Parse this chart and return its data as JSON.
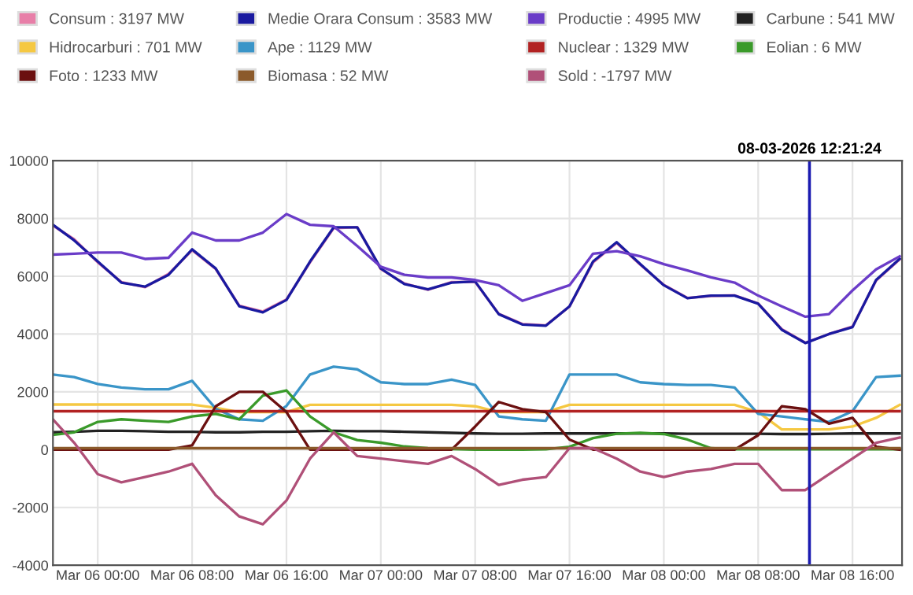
{
  "chart_data": {
    "type": "line",
    "legend": "top",
    "grid": true,
    "marker": "none",
    "line_style": "solid",
    "x": [
      "2026-03-05T20:12",
      "2026-03-05T22:00",
      "2026-03-06T00:00",
      "2026-03-06T02:00",
      "2026-03-06T04:00",
      "2026-03-06T06:00",
      "2026-03-06T08:00",
      "2026-03-06T10:00",
      "2026-03-06T12:00",
      "2026-03-06T14:00",
      "2026-03-06T16:00",
      "2026-03-06T18:00",
      "2026-03-06T20:00",
      "2026-03-06T22:00",
      "2026-03-07T00:00",
      "2026-03-07T02:00",
      "2026-03-07T04:00",
      "2026-03-07T06:00",
      "2026-03-07T08:00",
      "2026-03-07T10:00",
      "2026-03-07T12:00",
      "2026-03-07T14:00",
      "2026-03-07T16:00",
      "2026-03-07T18:00",
      "2026-03-07T20:00",
      "2026-03-07T22:00",
      "2026-03-08T00:00",
      "2026-03-08T02:00",
      "2026-03-08T04:00",
      "2026-03-08T06:00",
      "2026-03-08T08:00",
      "2026-03-08T10:00",
      "2026-03-08T12:00",
      "2026-03-08T14:00",
      "2026-03-08T16:00",
      "2026-03-08T18:00",
      "2026-03-08T20:00"
    ],
    "xlim": [
      "2026-03-05T20:12",
      "2026-03-08T20:12"
    ],
    "xticks": [
      {
        "value": "2026-03-06T00:00",
        "label": "Mar 06 00:00"
      },
      {
        "value": "2026-03-06T08:00",
        "label": "Mar 06 08:00"
      },
      {
        "value": "2026-03-06T16:00",
        "label": "Mar 06 16:00"
      },
      {
        "value": "2026-03-07T00:00",
        "label": "Mar 07 00:00"
      },
      {
        "value": "2026-03-07T08:00",
        "label": "Mar 07 08:00"
      },
      {
        "value": "2026-03-07T16:00",
        "label": "Mar 07 16:00"
      },
      {
        "value": "2026-03-08T00:00",
        "label": "Mar 08 00:00"
      },
      {
        "value": "2026-03-08T08:00",
        "label": "Mar 08 08:00"
      },
      {
        "value": "2026-03-08T16:00",
        "label": "Mar 08 16:00"
      }
    ],
    "ylim": [
      -4000,
      10000
    ],
    "yticks": [
      -4000,
      -2000,
      0,
      2000,
      4000,
      6000,
      8000,
      10000
    ],
    "ref_lines": [
      {
        "axis": "x",
        "value": "2026-03-08T12:21",
        "label": "08-03-2026 12:21:24",
        "color": "#1a1ab0"
      }
    ],
    "series": [
      {
        "name": "Consum : 3197 MW",
        "color": "#e87fa8",
        "values": [
          7750,
          7280,
          6480,
          5800,
          5620,
          6080,
          6900,
          6250,
          4980,
          4780,
          5200,
          6480,
          7660,
          7700,
          6250,
          5750,
          5530,
          5800,
          5800,
          4700,
          4350,
          4300,
          4950,
          6480,
          7150,
          6400,
          5700,
          5250,
          5320,
          5340,
          5060,
          4170,
          3700,
          4000,
          4260,
          5850,
          6580
        ]
      },
      {
        "name": "Medie Orara Consum : 3583 MW",
        "color": "#1a1aa0",
        "values": [
          7780,
          7240,
          6510,
          5780,
          5640,
          6050,
          6930,
          6270,
          4960,
          4750,
          5180,
          6510,
          7690,
          7690,
          6270,
          5730,
          5550,
          5780,
          5820,
          4690,
          4330,
          4290,
          4960,
          6510,
          7180,
          6420,
          5690,
          5240,
          5330,
          5330,
          5050,
          4150,
          3690,
          4000,
          4240,
          5870,
          6600
        ]
      },
      {
        "name": "Productie : 4995 MW",
        "color": "#6a3cc8",
        "values": [
          6750,
          6780,
          6820,
          6820,
          6600,
          6640,
          7510,
          7240,
          7240,
          7510,
          8150,
          7780,
          7730,
          7050,
          6330,
          6050,
          5960,
          5960,
          5870,
          5690,
          5150,
          5420,
          5690,
          6780,
          6870,
          6690,
          6420,
          6200,
          5960,
          5780,
          5330,
          4960,
          4600,
          4690,
          5510,
          6240,
          6690
        ]
      },
      {
        "name": "Carbune : 541 MW",
        "color": "#222222",
        "values": [
          600,
          620,
          650,
          650,
          640,
          620,
          620,
          600,
          600,
          620,
          620,
          640,
          650,
          640,
          640,
          620,
          600,
          580,
          560,
          550,
          550,
          560,
          560,
          560,
          560,
          560,
          560,
          550,
          550,
          550,
          550,
          540,
          540,
          550,
          560,
          560,
          560
        ]
      },
      {
        "name": "Hidrocarburi : 701 MW",
        "color": "#f5c842",
        "values": [
          1560,
          1560,
          1560,
          1560,
          1560,
          1560,
          1560,
          1450,
          1300,
          1300,
          1300,
          1550,
          1550,
          1550,
          1550,
          1550,
          1550,
          1550,
          1500,
          1300,
          1300,
          1300,
          1550,
          1550,
          1550,
          1550,
          1550,
          1550,
          1550,
          1550,
          1300,
          700,
          700,
          700,
          800,
          1100,
          1550
        ]
      },
      {
        "name": "Ape : 1129 MW",
        "color": "#3a95c8",
        "values": [
          2600,
          2510,
          2270,
          2150,
          2090,
          2090,
          2380,
          1420,
          1050,
          1000,
          1510,
          2600,
          2870,
          2780,
          2330,
          2270,
          2270,
          2420,
          2240,
          1150,
          1050,
          1000,
          2600,
          2600,
          2600,
          2330,
          2270,
          2240,
          2240,
          2150,
          1240,
          1150,
          1050,
          960,
          1330,
          2510,
          2560
        ]
      },
      {
        "name": "Nuclear : 1329 MW",
        "color": "#b22222",
        "values": [
          1330,
          1330,
          1330,
          1330,
          1330,
          1330,
          1330,
          1330,
          1330,
          1330,
          1330,
          1330,
          1330,
          1330,
          1330,
          1330,
          1330,
          1330,
          1330,
          1330,
          1330,
          1330,
          1330,
          1330,
          1330,
          1330,
          1330,
          1330,
          1330,
          1330,
          1330,
          1330,
          1330,
          1330,
          1330,
          1330,
          1330
        ]
      },
      {
        "name": "Eolian : 6 MW",
        "color": "#3a9a2a",
        "values": [
          510,
          600,
          960,
          1050,
          1000,
          960,
          1150,
          1240,
          1050,
          1870,
          2050,
          1150,
          600,
          330,
          240,
          110,
          50,
          20,
          0,
          0,
          0,
          10,
          100,
          400,
          550,
          580,
          540,
          350,
          50,
          10,
          10,
          10,
          10,
          10,
          10,
          10,
          10
        ]
      },
      {
        "name": "Foto : 1233 MW",
        "color": "#6b1010",
        "values": [
          0,
          0,
          0,
          0,
          0,
          0,
          150,
          1500,
          2000,
          2000,
          1300,
          0,
          0,
          0,
          0,
          0,
          0,
          0,
          800,
          1650,
          1400,
          1300,
          350,
          0,
          0,
          0,
          0,
          0,
          0,
          0,
          500,
          1500,
          1400,
          900,
          1100,
          100,
          0
        ]
      },
      {
        "name": "Biomasa : 52 MW",
        "color": "#8b5a2b",
        "values": [
          50,
          50,
          50,
          50,
          50,
          50,
          50,
          50,
          50,
          50,
          50,
          50,
          50,
          50,
          50,
          50,
          50,
          50,
          50,
          50,
          50,
          50,
          50,
          50,
          50,
          50,
          50,
          50,
          50,
          50,
          50,
          50,
          50,
          50,
          50,
          50,
          50
        ]
      },
      {
        "name": "Sold : -1797 MW",
        "color": "#b05078",
        "values": [
          1050,
          240,
          -850,
          -1130,
          -950,
          -760,
          -490,
          -1580,
          -2310,
          -2580,
          -1760,
          -310,
          600,
          -220,
          -310,
          -400,
          -490,
          -220,
          -670,
          -1220,
          -1040,
          -950,
          50,
          50,
          -310,
          -760,
          -950,
          -760,
          -670,
          -490,
          -490,
          -1400,
          -1400,
          -850,
          -310,
          240,
          420
        ]
      }
    ]
  }
}
